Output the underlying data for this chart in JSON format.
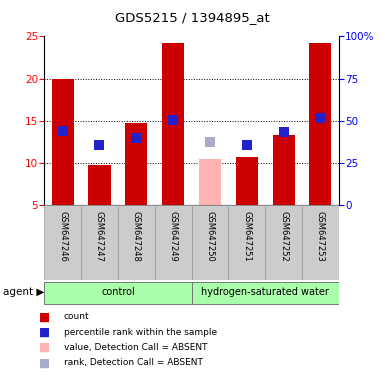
{
  "title": "GDS5215 / 1394895_at",
  "samples": [
    "GSM647246",
    "GSM647247",
    "GSM647248",
    "GSM647249",
    "GSM647250",
    "GSM647251",
    "GSM647252",
    "GSM647253"
  ],
  "bar_colors": [
    "#cc0000",
    "#cc0000",
    "#cc0000",
    "#cc0000",
    "#ffb3b3",
    "#cc0000",
    "#cc0000",
    "#cc0000"
  ],
  "bar_heights": [
    20.0,
    9.8,
    14.8,
    24.2,
    10.5,
    10.7,
    13.3,
    24.2
  ],
  "rank_colors": [
    "#2222cc",
    "#2222cc",
    "#2222cc",
    "#2222cc",
    "#aaaacc",
    "#2222cc",
    "#2222cc",
    "#2222cc"
  ],
  "rank_values": [
    13.8,
    12.1,
    13.0,
    15.1,
    12.5,
    12.1,
    13.7,
    15.3
  ],
  "ylim_left": [
    5,
    25
  ],
  "ylim_right": [
    0,
    100
  ],
  "yticks_left": [
    5,
    10,
    15,
    20,
    25
  ],
  "yticks_right": [
    0,
    25,
    50,
    75,
    100
  ],
  "ytick_labels_right": [
    "0",
    "25",
    "50",
    "75",
    "100%"
  ],
  "bar_width": 0.6,
  "rank_marker_size": 45,
  "grid_yvals": [
    10,
    15,
    20
  ],
  "sample_bg_color": "#cccccc",
  "group_bg_color": "#aaffaa",
  "legend_colors": [
    "#cc0000",
    "#2222cc",
    "#ffb3b3",
    "#aaaacc"
  ],
  "legend_labels": [
    "count",
    "percentile rank within the sample",
    "value, Detection Call = ABSENT",
    "rank, Detection Call = ABSENT"
  ]
}
